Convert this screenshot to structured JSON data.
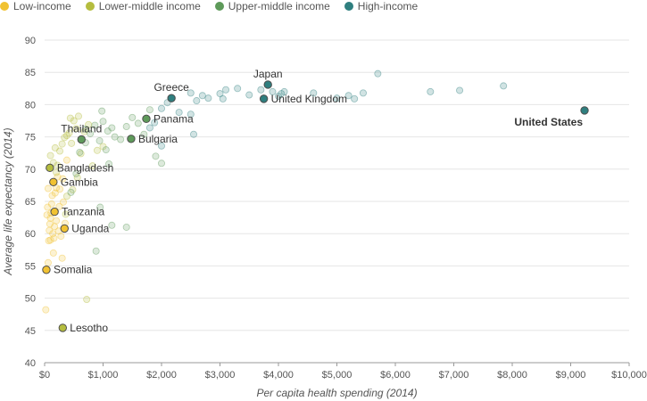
{
  "legend": [
    {
      "label": "Low-income",
      "color": "#f1c232"
    },
    {
      "label": "Lower-middle income",
      "color": "#b5bd3f"
    },
    {
      "label": "Upper-middle income",
      "color": "#5e9a5a"
    },
    {
      "label": "High-income",
      "color": "#2f7f7f"
    }
  ],
  "chart_data": {
    "type": "scatter",
    "xlabel": "Per capita health spending (2014)",
    "ylabel": "Average life expectancy (2014)",
    "xlim": [
      0,
      10000
    ],
    "ylim": [
      40,
      90
    ],
    "x_ticks": [
      0,
      1000,
      2000,
      3000,
      4000,
      5000,
      6000,
      7000,
      8000,
      9000,
      10000
    ],
    "x_tick_labels": [
      "$0",
      "$1,000",
      "$2,000",
      "$3,000",
      "$4,000",
      "$5,000",
      "$6,000",
      "$7,000",
      "$8,000",
      "$9,000",
      "$10,000"
    ],
    "y_ticks": [
      40,
      45,
      50,
      55,
      60,
      65,
      70,
      75,
      80,
      85,
      90
    ],
    "y_tick_labels": [
      "40",
      "45",
      "50",
      "55",
      "60",
      "65",
      "70",
      "75",
      "80",
      "85",
      "90"
    ],
    "grid": "horizontal",
    "legend_position": "top-left",
    "highlighted": [
      {
        "label": "United States",
        "group": "High-income",
        "x": 9237,
        "y": 79.1,
        "label_pos": "left-below",
        "bold": true
      },
      {
        "label": "Japan",
        "group": "High-income",
        "x": 3820,
        "y": 83.1,
        "label_pos": "above"
      },
      {
        "label": "United Kingdom",
        "group": "High-income",
        "x": 3750,
        "y": 80.9,
        "label_pos": "right"
      },
      {
        "label": "Greece",
        "group": "High-income",
        "x": 2170,
        "y": 81.0,
        "label_pos": "above"
      },
      {
        "label": "Panama",
        "group": "Upper-middle income",
        "x": 1740,
        "y": 77.8,
        "label_pos": "right"
      },
      {
        "label": "Bulgaria",
        "group": "Upper-middle income",
        "x": 1480,
        "y": 74.7,
        "label_pos": "right"
      },
      {
        "label": "Thailand",
        "group": "Upper-middle income",
        "x": 630,
        "y": 74.6,
        "label_pos": "above"
      },
      {
        "label": "Bangladesh",
        "group": "Lower-middle income",
        "x": 90,
        "y": 70.2,
        "label_pos": "right"
      },
      {
        "label": "Gambia",
        "group": "Low-income",
        "x": 150,
        "y": 68.0,
        "label_pos": "right"
      },
      {
        "label": "Tanzania",
        "group": "Low-income",
        "x": 170,
        "y": 63.4,
        "label_pos": "right"
      },
      {
        "label": "Uganda",
        "group": "Low-income",
        "x": 340,
        "y": 60.8,
        "label_pos": "right"
      },
      {
        "label": "Somalia",
        "group": "Low-income",
        "x": 30,
        "y": 54.4,
        "label_pos": "right"
      },
      {
        "label": "Lesotho",
        "group": "Lower-middle income",
        "x": 310,
        "y": 45.4,
        "label_pos": "right"
      }
    ],
    "series": [
      {
        "name": "Low-income",
        "points": [
          [
            20,
            48.2
          ],
          [
            60,
            55.5
          ],
          [
            70,
            58.9
          ],
          [
            80,
            60.5
          ],
          [
            90,
            61.5
          ],
          [
            100,
            62.4
          ],
          [
            110,
            63.2
          ],
          [
            120,
            64.6
          ],
          [
            130,
            65.9
          ],
          [
            150,
            57.0
          ],
          [
            160,
            59.3
          ],
          [
            170,
            61.1
          ],
          [
            180,
            66.3
          ],
          [
            200,
            67.1
          ],
          [
            220,
            68.8
          ],
          [
            240,
            60.4
          ],
          [
            260,
            66.9
          ],
          [
            280,
            59.6
          ],
          [
            300,
            56.2
          ],
          [
            320,
            64.9
          ],
          [
            350,
            61.6
          ],
          [
            380,
            71.4
          ],
          [
            40,
            62.9
          ],
          [
            50,
            64.1
          ],
          [
            100,
            59.0
          ],
          [
            200,
            62.0
          ],
          [
            250,
            64.2
          ],
          [
            60,
            67.0
          ],
          [
            140,
            60.0
          ],
          [
            310,
            68.5
          ]
        ]
      },
      {
        "name": "Lower-middle income",
        "points": [
          [
            100,
            72.1
          ],
          [
            150,
            71.0
          ],
          [
            180,
            73.3
          ],
          [
            200,
            69.5
          ],
          [
            220,
            70.6
          ],
          [
            260,
            72.8
          ],
          [
            300,
            73.9
          ],
          [
            340,
            74.9
          ],
          [
            380,
            75.2
          ],
          [
            420,
            75.6
          ],
          [
            460,
            74.0
          ],
          [
            500,
            77.5
          ],
          [
            540,
            76.3
          ],
          [
            580,
            78.2
          ],
          [
            620,
            72.4
          ],
          [
            680,
            75.8
          ],
          [
            750,
            76.9
          ],
          [
            820,
            70.5
          ],
          [
            900,
            72.9
          ],
          [
            1000,
            73.5
          ],
          [
            720,
            49.8
          ],
          [
            480,
            66.8
          ],
          [
            360,
            63.0
          ],
          [
            440,
            77.9
          ],
          [
            560,
            68.7
          ],
          [
            380,
            65.8
          ]
        ]
      },
      {
        "name": "Upper-middle income",
        "points": [
          [
            450,
            66.4
          ],
          [
            540,
            69.3
          ],
          [
            600,
            72.6
          ],
          [
            700,
            74.1
          ],
          [
            780,
            75.5
          ],
          [
            860,
            76.8
          ],
          [
            940,
            74.4
          ],
          [
            1000,
            77.4
          ],
          [
            1080,
            75.9
          ],
          [
            1150,
            76.4
          ],
          [
            1200,
            75.0
          ],
          [
            1300,
            74.6
          ],
          [
            1400,
            76.6
          ],
          [
            1500,
            78.0
          ],
          [
            1600,
            77.1
          ],
          [
            1700,
            75.4
          ],
          [
            1800,
            79.2
          ],
          [
            1900,
            72.0
          ],
          [
            2000,
            70.9
          ],
          [
            1050,
            73.0
          ],
          [
            1150,
            61.3
          ],
          [
            1400,
            61.0
          ],
          [
            950,
            64.1
          ],
          [
            880,
            57.3
          ],
          [
            980,
            79.0
          ],
          [
            1100,
            70.8
          ],
          [
            700,
            76.2
          ]
        ]
      },
      {
        "name": "High-income",
        "points": [
          [
            1800,
            76.4
          ],
          [
            2000,
            73.6
          ],
          [
            2100,
            80.3
          ],
          [
            2300,
            78.8
          ],
          [
            2500,
            81.8
          ],
          [
            2600,
            80.6
          ],
          [
            2700,
            81.4
          ],
          [
            2800,
            81.0
          ],
          [
            3000,
            81.7
          ],
          [
            3100,
            82.3
          ],
          [
            3300,
            82.5
          ],
          [
            3500,
            81.5
          ],
          [
            3700,
            82.3
          ],
          [
            3900,
            82.0
          ],
          [
            4000,
            81.3
          ],
          [
            4100,
            82.0
          ],
          [
            4600,
            81.8
          ],
          [
            5000,
            81.0
          ],
          [
            5200,
            81.4
          ],
          [
            5300,
            80.9
          ],
          [
            5450,
            81.8
          ],
          [
            5700,
            84.8
          ],
          [
            6600,
            82.0
          ],
          [
            7100,
            82.2
          ],
          [
            7850,
            82.9
          ],
          [
            2550,
            75.4
          ],
          [
            1880,
            77.2
          ],
          [
            2000,
            79.4
          ],
          [
            4050,
            81.7
          ],
          [
            2500,
            78.5
          ],
          [
            3050,
            80.9
          ]
        ]
      }
    ]
  }
}
